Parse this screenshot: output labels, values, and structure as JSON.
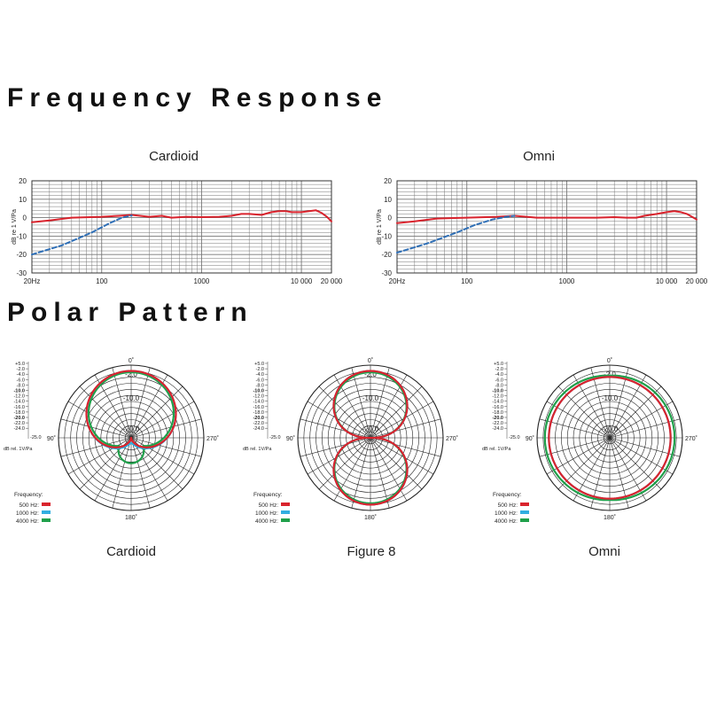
{
  "page": {
    "frequency_title": "Frequency Response",
    "polar_title": "Polar Pattern"
  },
  "colors": {
    "response": "#d9232d",
    "lowcut": "#2f6fb6",
    "f500": "#d9232d",
    "f1000": "#31aee0",
    "f4000": "#1fa04a",
    "grid": "#555555"
  },
  "chart_data": [
    {
      "type": "line",
      "title": "Cardioid",
      "xlabel": "",
      "ylabel": "dB re 1 V/Pa",
      "x_scale": "log",
      "xlim": [
        20,
        20000
      ],
      "ylim": [
        -30,
        20
      ],
      "x_ticks": [
        {
          "v": 20,
          "label": "20Hz"
        },
        {
          "v": 100,
          "label": "100"
        },
        {
          "v": 1000,
          "label": "1000"
        },
        {
          "v": 10000,
          "label": "10 000"
        },
        {
          "v": 20000,
          "label": "20 000"
        }
      ],
      "y_ticks": [
        20,
        10,
        0,
        -10,
        -20,
        -30
      ],
      "grid": true,
      "series": [
        {
          "color_key": "response",
          "style": "solid",
          "points": [
            [
              20,
              -2.5
            ],
            [
              30,
              -1.5
            ],
            [
              50,
              0
            ],
            [
              100,
              0.5
            ],
            [
              150,
              1
            ],
            [
              200,
              1.5
            ],
            [
              300,
              0.5
            ],
            [
              400,
              1
            ],
            [
              500,
              0
            ],
            [
              700,
              0.5
            ],
            [
              1000,
              0.3
            ],
            [
              1500,
              0.5
            ],
            [
              2000,
              1
            ],
            [
              2500,
              2
            ],
            [
              3000,
              2
            ],
            [
              4000,
              1.5
            ],
            [
              5000,
              3
            ],
            [
              6000,
              3.5
            ],
            [
              7000,
              3.5
            ],
            [
              8000,
              3
            ],
            [
              9000,
              3
            ],
            [
              10000,
              3
            ],
            [
              12000,
              3.5
            ],
            [
              14000,
              4
            ],
            [
              16000,
              2.5
            ],
            [
              18000,
              0.5
            ],
            [
              20000,
              -2
            ]
          ]
        },
        {
          "color_key": "lowcut",
          "style": "dashed",
          "points": [
            [
              20,
              -20
            ],
            [
              40,
              -15
            ],
            [
              80,
              -8
            ],
            [
              120,
              -3
            ],
            [
              160,
              0
            ],
            [
              200,
              1.2
            ]
          ]
        }
      ]
    },
    {
      "type": "line",
      "title": "Omni",
      "xlabel": "",
      "ylabel": "dB re 1 V/Pa",
      "x_scale": "log",
      "xlim": [
        20,
        20000
      ],
      "ylim": [
        -30,
        20
      ],
      "x_ticks": [
        {
          "v": 20,
          "label": "20Hz"
        },
        {
          "v": 100,
          "label": "100"
        },
        {
          "v": 1000,
          "label": "1000"
        },
        {
          "v": 10000,
          "label": "10 000"
        },
        {
          "v": 20000,
          "label": "20 000"
        }
      ],
      "y_ticks": [
        20,
        10,
        0,
        -10,
        -20,
        -30
      ],
      "grid": true,
      "series": [
        {
          "color_key": "response",
          "style": "solid",
          "points": [
            [
              20,
              -3
            ],
            [
              30,
              -2
            ],
            [
              50,
              -0.5
            ],
            [
              100,
              0
            ],
            [
              200,
              0.5
            ],
            [
              300,
              1
            ],
            [
              400,
              0.5
            ],
            [
              500,
              0
            ],
            [
              1000,
              0
            ],
            [
              2000,
              0
            ],
            [
              3000,
              0.3
            ],
            [
              4000,
              0
            ],
            [
              5000,
              0
            ],
            [
              6000,
              1
            ],
            [
              8000,
              2
            ],
            [
              10000,
              3
            ],
            [
              12000,
              3.5
            ],
            [
              14000,
              3
            ],
            [
              16000,
              2
            ],
            [
              18000,
              0.5
            ],
            [
              20000,
              -1
            ]
          ]
        },
        {
          "color_key": "lowcut",
          "style": "dashed",
          "points": [
            [
              20,
              -19
            ],
            [
              40,
              -14
            ],
            [
              80,
              -8
            ],
            [
              120,
              -4
            ],
            [
              180,
              -1
            ],
            [
              250,
              0.5
            ],
            [
              300,
              1
            ]
          ]
        }
      ]
    }
  ],
  "polar": {
    "scale_labels": [
      "+5.0",
      "-2.0",
      "-4.0",
      "-6.0",
      "-8.0",
      "-10.0",
      "-12.0",
      "-14.0",
      "-16.0",
      "-18.0",
      "-20.0",
      "-22.0",
      "-24.0"
    ],
    "scale_bold": [
      "-10.0",
      "-20.0"
    ],
    "bottom_scale": "-25.0",
    "unit": "dB rel. 1V/Pa",
    "ring_labels": [
      "-2.0",
      "-10.0",
      "-20.0"
    ],
    "angles": {
      "top": "0˚",
      "right": "270˚",
      "bottom": "180˚",
      "left": "90˚"
    },
    "legend_title": "Frequency:",
    "legend": [
      {
        "label": "500 Hz:",
        "color_key": "f500"
      },
      {
        "label": "1000 Hz:",
        "color_key": "f1000"
      },
      {
        "label": "4000 Hz:",
        "color_key": "f4000"
      }
    ],
    "plots": [
      {
        "name": "Cardioid",
        "pattern": "cardioid"
      },
      {
        "name": "Figure 8",
        "pattern": "figure8"
      },
      {
        "name": "Omni",
        "pattern": "omni"
      }
    ]
  }
}
